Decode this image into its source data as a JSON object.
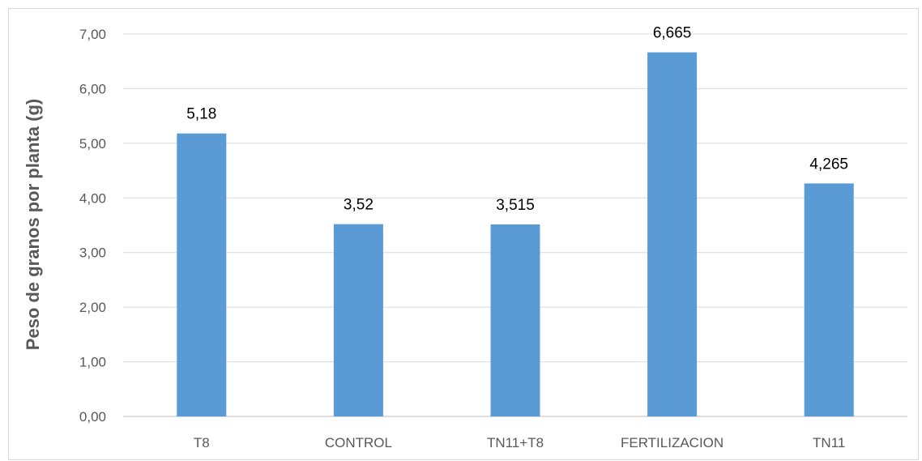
{
  "chart_data": {
    "type": "bar",
    "categories": [
      "T8",
      "CONTROL",
      "TN11+T8",
      "FERTILIZACION",
      "TN11"
    ],
    "values": [
      5.18,
      3.52,
      3.515,
      6.665,
      4.265
    ],
    "data_labels": [
      "5,18",
      "3,52",
      "3,515",
      "6,665",
      "4,265"
    ],
    "ylabel": "Peso de granos por planta (g)",
    "xlabel": "",
    "title": "",
    "ylim": [
      0,
      7
    ],
    "yticks": [
      0,
      1,
      2,
      3,
      4,
      5,
      6,
      7
    ],
    "ytick_labels": [
      "0,00",
      "1,00",
      "2,00",
      "3,00",
      "4,00",
      "5,00",
      "6,00",
      "7,00"
    ],
    "grid": true,
    "legend": "none",
    "bar_color": "#5b9bd5"
  }
}
